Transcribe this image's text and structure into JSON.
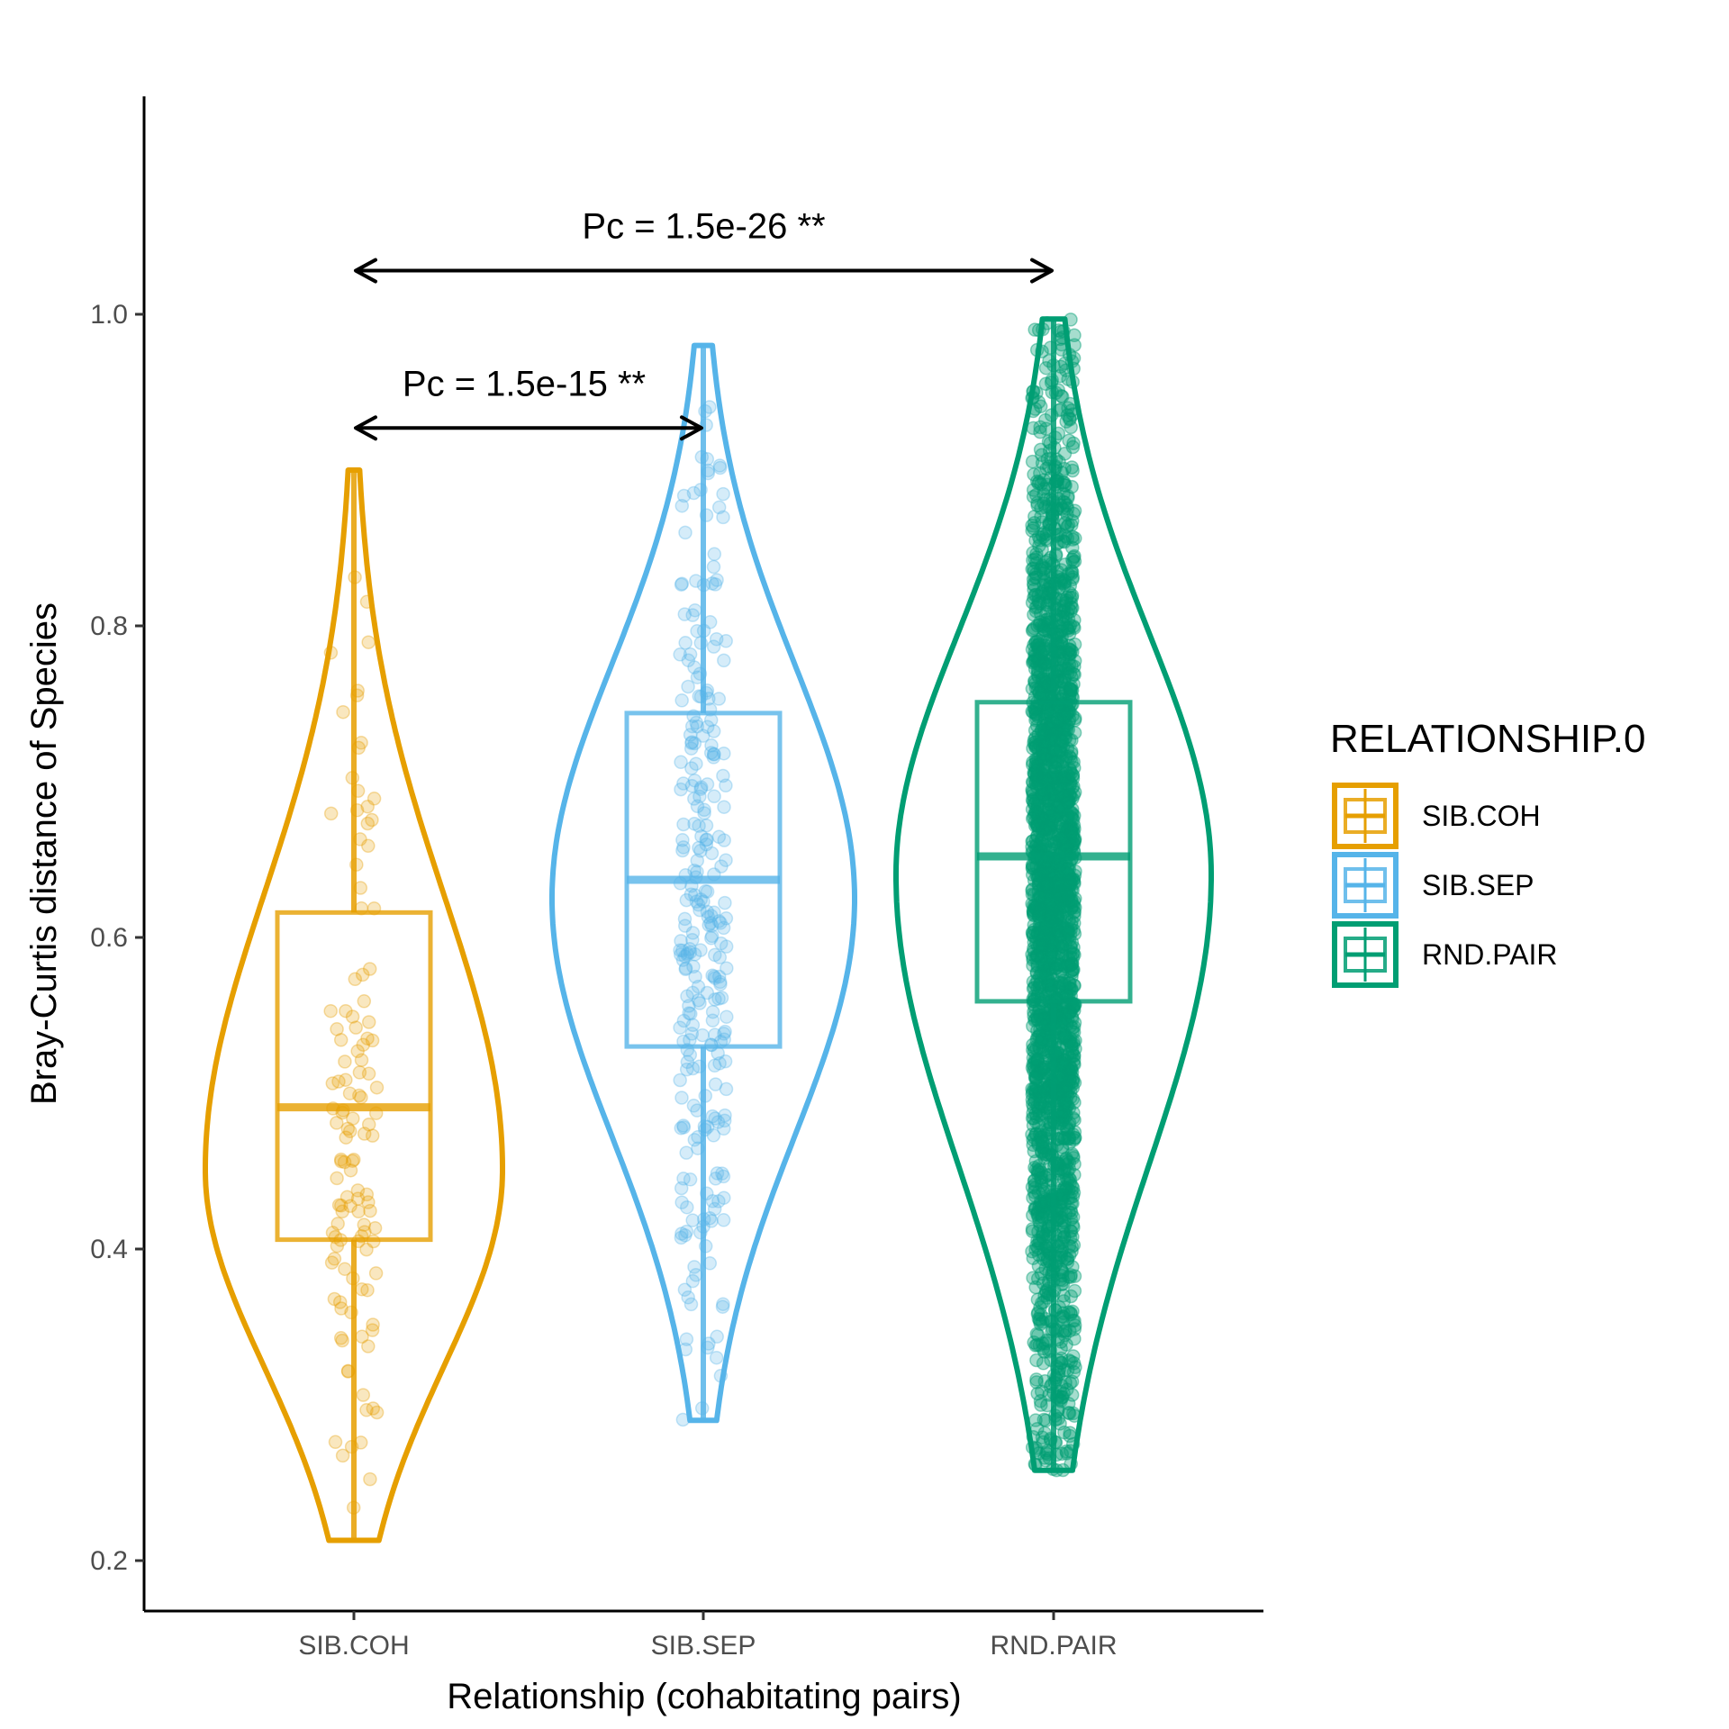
{
  "chart_data": {
    "type": "violin",
    "title": "",
    "xlabel": "Relationship (cohabitating pairs)",
    "ylabel": "Bray-Curtis distance of Species",
    "ylim": [
      0.17,
      1.22
    ],
    "y_ticks": [
      0.2,
      0.4,
      0.6,
      0.8,
      1.0
    ],
    "y_tick_labels": [
      "0.2",
      "0.4",
      "0.6",
      "0.8",
      "1.0"
    ],
    "categories": [
      "SIB.COH",
      "SIB.SEP",
      "RND.PAIR"
    ],
    "grid": false,
    "legend": {
      "title": "RELATIONSHIP.0",
      "position": "right",
      "entries": [
        "SIB.COH",
        "SIB.SEP",
        "RND.PAIR"
      ]
    },
    "series": [
      {
        "name": "SIB.COH",
        "color": "#E69F00",
        "box": {
          "min": 0.213,
          "q1": 0.406,
          "median": 0.491,
          "q3": 0.616,
          "max": 0.9
        },
        "violin_range": [
          0.213,
          0.9
        ],
        "n_points": 120
      },
      {
        "name": "SIB.SEP",
        "color": "#56B4E9",
        "box": {
          "min": 0.29,
          "q1": 0.53,
          "median": 0.637,
          "q3": 0.744,
          "max": 0.98
        },
        "violin_range": [
          0.29,
          0.98
        ],
        "n_points": 280
      },
      {
        "name": "RND.PAIR",
        "color": "#009E73",
        "box": {
          "min": 0.258,
          "q1": 0.559,
          "median": 0.652,
          "q3": 0.751,
          "max": 0.997
        },
        "violin_range": [
          0.258,
          0.997
        ],
        "n_points": 2500
      }
    ],
    "annotations": [
      {
        "text": "Pc = 1.5e-15 **",
        "from": "SIB.COH",
        "to": "SIB.SEP",
        "y": 0.927
      },
      {
        "text": "Pc = 1.5e-26 **",
        "from": "SIB.COH",
        "to": "RND.PAIR",
        "y": 1.028
      }
    ]
  }
}
